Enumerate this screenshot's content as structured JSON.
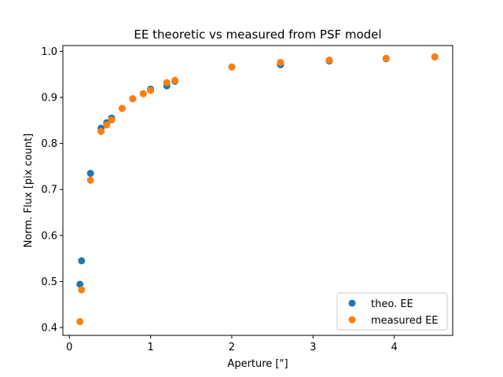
{
  "chart_data": {
    "type": "scatter",
    "title": "EE theoretic vs measured from PSF model",
    "xlabel": "Aperture [\"]",
    "ylabel": "Norm. Flux [pix count]",
    "xlim": [
      -0.08,
      4.72
    ],
    "ylim": [
      0.383,
      1.0126
    ],
    "xticks": [
      0,
      1,
      2,
      3,
      4
    ],
    "xtick_labels": [
      "0",
      "1",
      "2",
      "3",
      "4"
    ],
    "yticks": [
      0.4,
      0.5,
      0.6,
      0.7,
      0.8,
      0.9,
      1.0
    ],
    "ytick_labels": [
      "0.4",
      "0.5",
      "0.6",
      "0.7",
      "0.8",
      "0.9",
      "1.0"
    ],
    "grid": false,
    "legend_position": "lower right",
    "series": [
      {
        "name": "theo. EE",
        "color": "#1f77b4",
        "x": [
          0.13,
          0.15,
          0.26,
          0.39,
          0.46,
          0.52,
          0.65,
          0.78,
          0.91,
          1.0,
          1.2,
          1.3,
          2.0,
          2.6,
          3.2,
          3.9,
          4.5
        ],
        "y": [
          0.494,
          0.545,
          0.735,
          0.833,
          0.845,
          0.855,
          0.876,
          0.897,
          0.908,
          0.918,
          0.925,
          0.935,
          0.966,
          0.971,
          0.979,
          0.984,
          0.988
        ]
      },
      {
        "name": "measured EE",
        "color": "#ff7f0e",
        "x": [
          0.13,
          0.15,
          0.26,
          0.39,
          0.46,
          0.52,
          0.65,
          0.78,
          0.91,
          1.0,
          1.2,
          1.3,
          2.0,
          2.6,
          3.2,
          3.9,
          4.5
        ],
        "y": [
          0.413,
          0.482,
          0.72,
          0.826,
          0.84,
          0.851,
          0.876,
          0.897,
          0.908,
          0.915,
          0.932,
          0.937,
          0.966,
          0.976,
          0.981,
          0.985,
          0.988
        ]
      }
    ]
  }
}
